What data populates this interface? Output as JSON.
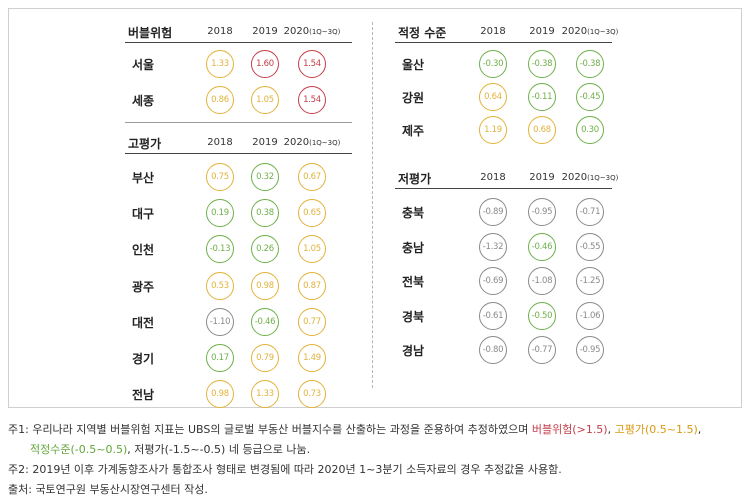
{
  "chart_data": {
    "type": "table",
    "colors": {
      "bubble": "#c23e4a",
      "high": "#e2b33b",
      "fair": "#6fb04a",
      "low": "#8a8a8a"
    },
    "panels": [
      {
        "title": "버블위험",
        "columns": [
          "2018",
          "2019",
          "2020"
        ],
        "column_suffix": "(1Q~3Q)",
        "rows": [
          {
            "label": "서울",
            "values": [
              1.33,
              1.6,
              1.54
            ]
          },
          {
            "label": "세종",
            "values": [
              0.86,
              1.05,
              1.54
            ]
          }
        ]
      },
      {
        "title": "고평가",
        "columns": [
          "2018",
          "2019",
          "2020"
        ],
        "column_suffix": "(1Q~3Q)",
        "rows": [
          {
            "label": "부산",
            "values": [
              0.75,
              0.32,
              0.67
            ]
          },
          {
            "label": "대구",
            "values": [
              0.19,
              0.38,
              0.65
            ]
          },
          {
            "label": "인천",
            "values": [
              -0.13,
              0.26,
              1.05
            ]
          },
          {
            "label": "광주",
            "values": [
              0.53,
              0.98,
              0.87
            ]
          },
          {
            "label": "대전",
            "values": [
              -1.1,
              -0.46,
              0.77
            ]
          },
          {
            "label": "경기",
            "values": [
              0.17,
              0.79,
              1.49
            ]
          },
          {
            "label": "전남",
            "values": [
              0.98,
              1.33,
              0.73
            ]
          }
        ]
      },
      {
        "title": "적정 수준",
        "columns": [
          "2018",
          "2019",
          "2020"
        ],
        "column_suffix": "(1Q~3Q)",
        "rows": [
          {
            "label": "울산",
            "values": [
              -0.3,
              -0.38,
              -0.38
            ]
          },
          {
            "label": "강원",
            "values": [
              0.64,
              -0.11,
              -0.45
            ]
          },
          {
            "label": "제주",
            "values": [
              1.19,
              0.68,
              0.3
            ]
          }
        ]
      },
      {
        "title": "저평가",
        "columns": [
          "2018",
          "2019",
          "2020"
        ],
        "column_suffix": "(1Q~3Q)",
        "rows": [
          {
            "label": "충북",
            "values": [
              -0.89,
              -0.95,
              -0.71
            ]
          },
          {
            "label": "충남",
            "values": [
              -1.32,
              -0.46,
              -0.55
            ]
          },
          {
            "label": "전북",
            "values": [
              -0.69,
              -1.08,
              -1.25
            ]
          },
          {
            "label": "경북",
            "values": [
              -0.61,
              -0.5,
              -1.06
            ]
          },
          {
            "label": "경남",
            "values": [
              -0.8,
              -0.77,
              -0.95
            ]
          }
        ]
      }
    ]
  },
  "notes": {
    "note1_pre": "주1: 우리나라 지역별 버블위험 지표는 UBS의 글로벌 부동산 버블지수를 산출하는 과정을 준용하여 추정하였으며 ",
    "note1_bubble": "버블위험(>1.5)",
    "note1_sep": ", ",
    "note1_high": "고평가(0.5~1.5)",
    "note1_end": ",",
    "note1_fair": "적정수준(-0.5~0.5)",
    "note1_low": ", 저평가(-1.5~-0.5) 네 등급으로 나눔.",
    "note2": "주2: 2019년 이후 가계동향조사가 통합조사 형태로 변경됨에 따라 2020년 1~3분기 소득자료의 경우 추정값을 사용함.",
    "source": "출처: 국토연구원 부동산시장연구센터 작성."
  }
}
